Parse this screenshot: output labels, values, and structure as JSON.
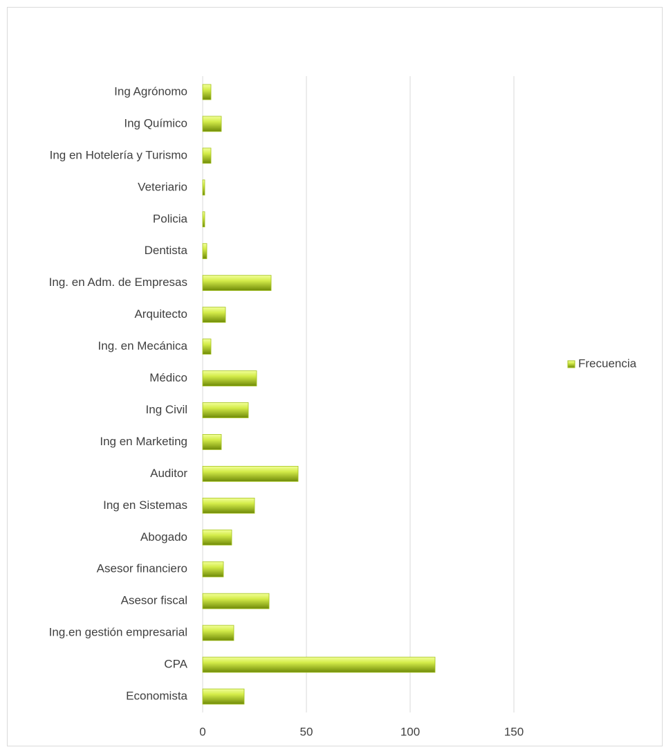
{
  "chart_data": {
    "type": "bar",
    "orientation": "horizontal",
    "categories": [
      "Economista",
      "CPA",
      "Ing.en gestión empresarial",
      "Asesor fiscal",
      "Asesor financiero",
      "Abogado",
      "Ing en Sistemas",
      "Auditor",
      "Ing en Marketing",
      "Ing Civil",
      "Médico",
      "Ing. en Mecánica",
      "Arquitecto",
      "Ing. en Adm. de Empresas",
      "Dentista",
      "Policia",
      "Veteriario",
      "Ing en Hotelería y Turismo",
      "Ing Químico",
      "Ing Agrónomo"
    ],
    "series": [
      {
        "name": "Frecuencia",
        "color": "#a4c21c",
        "values": [
          20,
          112,
          15,
          32,
          10,
          14,
          25,
          46,
          9,
          22,
          26,
          4,
          11,
          33,
          2,
          1,
          1,
          4,
          9,
          4
        ]
      }
    ],
    "xlim": [
      0,
      150
    ],
    "xticks": [
      0,
      50,
      100,
      150
    ],
    "grid": true,
    "legend": "right"
  }
}
